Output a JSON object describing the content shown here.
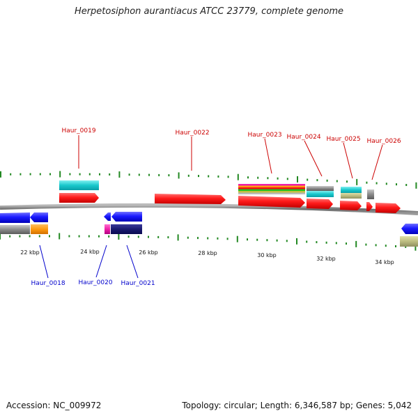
{
  "title": "Herpetosiphon aurantiacus ATCC 23779, complete genome",
  "footer": {
    "accession": "Accession: NC_009972",
    "summary": "Topology: circular; Length: 6,346,587 bp; Genes: 5,042"
  },
  "scale_labels": [
    "22 kbp",
    "24 kbp",
    "26 kbp",
    "28 kbp",
    "30 kbp",
    "32 kbp",
    "34 kbp"
  ],
  "forward_genes": [
    "Haur_0019",
    "Haur_0022",
    "Haur_0023",
    "Haur_0024",
    "Haur_0025",
    "Haur_0026"
  ],
  "reverse_genes": [
    "Haur_0018",
    "Haur_0020",
    "Haur_0021"
  ],
  "colors": {
    "forward_label": "#cc0000",
    "reverse_label": "#0000cc",
    "cds_forward": "#ee1111",
    "cds_reverse": "#1515ee",
    "backbone": "#888888",
    "tick": "#228822"
  }
}
